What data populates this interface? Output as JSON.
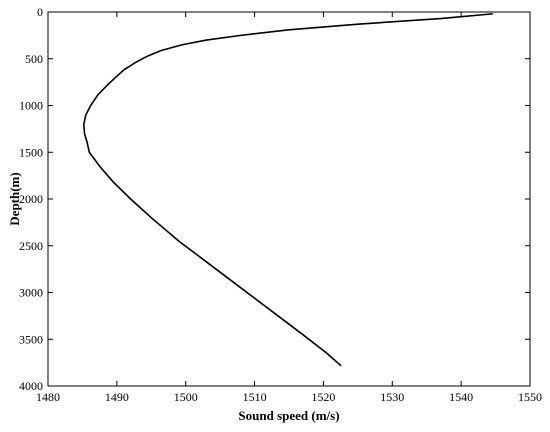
{
  "chart_data": {
    "type": "line",
    "title": "",
    "xlabel": "Sound speed (m/s)",
    "ylabel": "Depth(m)",
    "xlim": [
      1480,
      1550
    ],
    "ylim": [
      0,
      4000
    ],
    "y_reversed": true,
    "grid": false,
    "x_ticks": [
      "1480",
      "1490",
      "1500",
      "1510",
      "1520",
      "1530",
      "1540",
      "1550"
    ],
    "y_ticks": [
      "0",
      "500",
      "1000",
      "1500",
      "2000",
      "2500",
      "3000",
      "3500",
      "4000"
    ],
    "series": [
      {
        "color": "#000000",
        "points": [
          [
            1544.5,
            20
          ],
          [
            1537.0,
            70
          ],
          [
            1525.0,
            130
          ],
          [
            1515.0,
            190
          ],
          [
            1508.0,
            250
          ],
          [
            1503.0,
            300
          ],
          [
            1499.5,
            350
          ],
          [
            1496.5,
            410
          ],
          [
            1494.5,
            470
          ],
          [
            1492.7,
            540
          ],
          [
            1491.0,
            620
          ],
          [
            1489.8,
            700
          ],
          [
            1488.5,
            790
          ],
          [
            1487.2,
            890
          ],
          [
            1486.2,
            1000
          ],
          [
            1485.5,
            1100
          ],
          [
            1485.2,
            1200
          ],
          [
            1485.3,
            1300
          ],
          [
            1485.7,
            1400
          ],
          [
            1486.0,
            1500
          ],
          [
            1487.5,
            1650
          ],
          [
            1489.5,
            1820
          ],
          [
            1492.0,
            2000
          ],
          [
            1495.0,
            2200
          ],
          [
            1499.0,
            2450
          ],
          [
            1503.5,
            2700
          ],
          [
            1508.0,
            2950
          ],
          [
            1512.5,
            3200
          ],
          [
            1517.0,
            3450
          ],
          [
            1520.5,
            3650
          ],
          [
            1522.5,
            3780
          ]
        ]
      }
    ]
  }
}
